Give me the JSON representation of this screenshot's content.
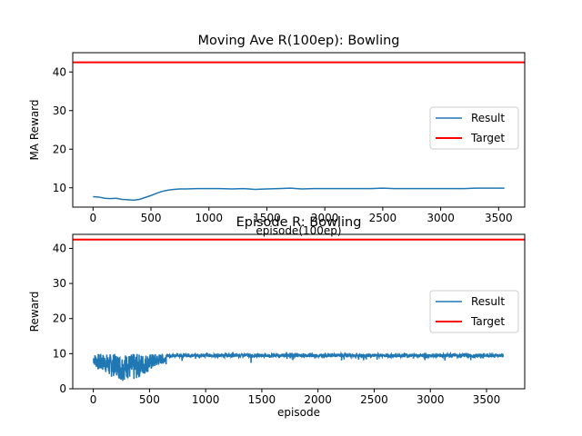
{
  "colors": {
    "result": "#1f77b4",
    "target": "#ff0000",
    "axes": "#000000",
    "background": "#ffffff"
  },
  "chart_data": [
    {
      "type": "line",
      "title": "Moving Ave R(100ep): Bowling",
      "xlabel": "episode(100ep)",
      "ylabel": "MA Reward",
      "xlim": [
        -175,
        3725
      ],
      "ylim": [
        5,
        45
      ],
      "xticks": [
        0,
        500,
        1000,
        1500,
        2000,
        2500,
        3000,
        3500
      ],
      "yticks": [
        10,
        20,
        30,
        40
      ],
      "grid": false,
      "legend": {
        "position": "right",
        "entries": [
          "Result",
          "Target"
        ]
      },
      "series": [
        {
          "name": "Result",
          "x": [
            0,
            50,
            100,
            150,
            200,
            250,
            300,
            350,
            400,
            450,
            500,
            550,
            600,
            650,
            700,
            750,
            800,
            900,
            1000,
            1100,
            1200,
            1300,
            1400,
            1500,
            1600,
            1700,
            1800,
            1900,
            2000,
            2100,
            2200,
            2300,
            2400,
            2500,
            2600,
            2700,
            2800,
            2900,
            3000,
            3100,
            3200,
            3300,
            3400,
            3550
          ],
          "values": [
            7.7,
            7.6,
            7.3,
            7.2,
            7.3,
            7.0,
            6.9,
            6.8,
            7.0,
            7.5,
            8.0,
            8.6,
            9.1,
            9.4,
            9.6,
            9.7,
            9.7,
            9.8,
            9.8,
            9.8,
            9.7,
            9.8,
            9.6,
            9.7,
            9.8,
            9.9,
            9.7,
            9.8,
            9.8,
            9.8,
            9.8,
            9.8,
            9.8,
            9.9,
            9.8,
            9.8,
            9.8,
            9.8,
            9.8,
            9.8,
            9.8,
            9.9,
            9.9,
            9.9
          ]
        },
        {
          "name": "Target",
          "type": "hline",
          "y": 42.5
        }
      ]
    },
    {
      "type": "line",
      "title": "Episode R: Bowling",
      "xlabel": "episode",
      "ylabel": "Reward",
      "xlim": [
        -183,
        3840
      ],
      "ylim": [
        0,
        44
      ],
      "xticks": [
        0,
        500,
        1000,
        1500,
        2000,
        2500,
        3000,
        3500
      ],
      "yticks": [
        0,
        10,
        20,
        30,
        40
      ],
      "grid": false,
      "legend": {
        "position": "right",
        "entries": [
          "Result",
          "Target"
        ]
      },
      "series": [
        {
          "name": "Result",
          "x_start": 0,
          "x_end": 3650,
          "min_by_x": [
            [
              0,
              7
            ],
            [
              50,
              5
            ],
            [
              100,
              5
            ],
            [
              150,
              3
            ],
            [
              200,
              4
            ],
            [
              250,
              2
            ],
            [
              300,
              3
            ],
            [
              350,
              2
            ],
            [
              400,
              3
            ],
            [
              450,
              4
            ],
            [
              500,
              5
            ],
            [
              550,
              6
            ],
            [
              600,
              7
            ],
            [
              700,
              7
            ],
            [
              800,
              8
            ],
            [
              900,
              8
            ],
            [
              1000,
              8
            ],
            [
              1100,
              8
            ],
            [
              1200,
              8
            ],
            [
              1300,
              8
            ],
            [
              1400,
              7
            ],
            [
              1450,
              4
            ],
            [
              1500,
              7
            ],
            [
              1600,
              8
            ],
            [
              1700,
              8
            ],
            [
              1800,
              6
            ],
            [
              1900,
              8
            ],
            [
              2000,
              8
            ],
            [
              2200,
              8
            ],
            [
              2400,
              8
            ],
            [
              2600,
              8
            ],
            [
              2800,
              8
            ],
            [
              2950,
              5
            ],
            [
              3000,
              8
            ],
            [
              3200,
              8
            ],
            [
              3400,
              8
            ],
            [
              3650,
              8
            ]
          ],
          "max": 10,
          "typical": [
            9,
            10
          ]
        },
        {
          "name": "Target",
          "type": "hline",
          "y": 42.5
        }
      ]
    }
  ]
}
